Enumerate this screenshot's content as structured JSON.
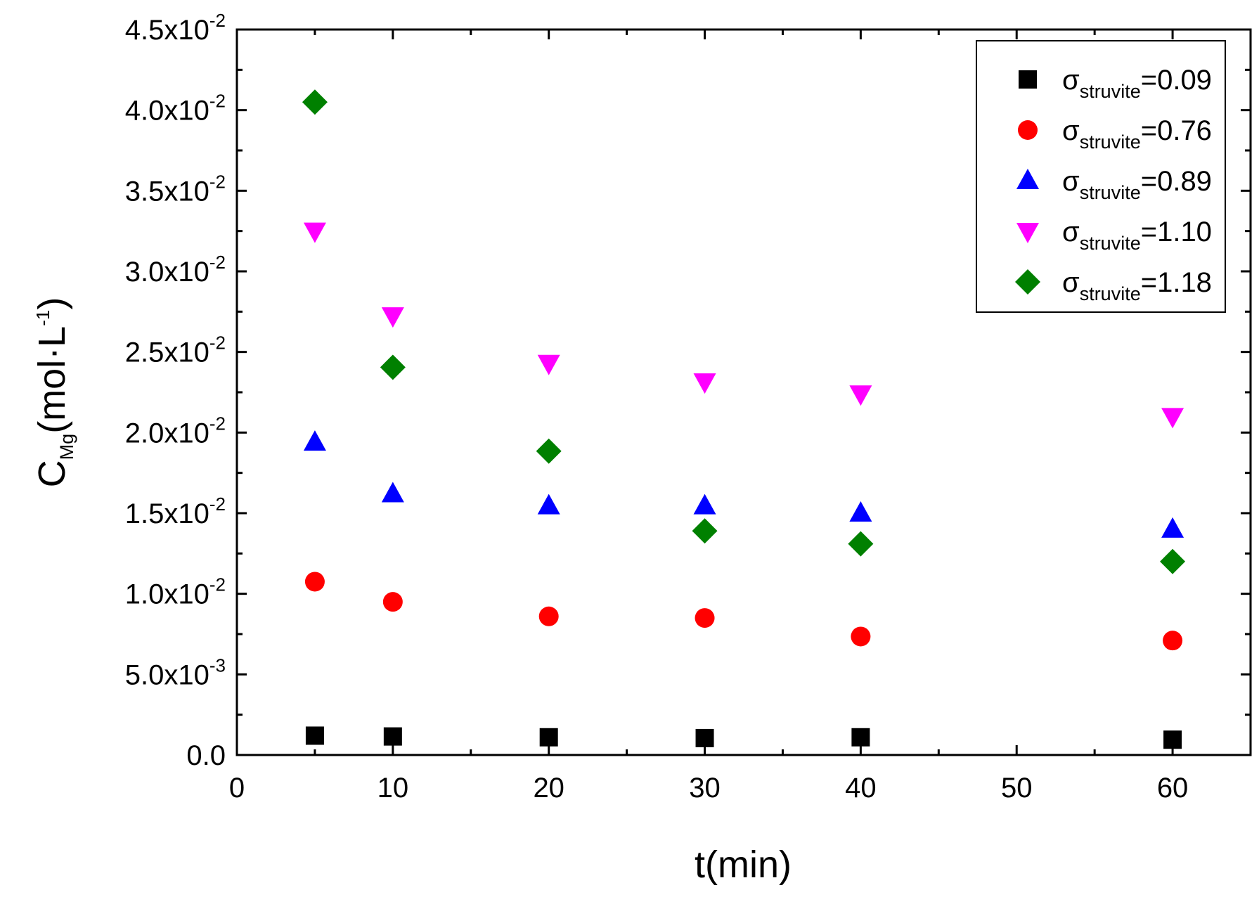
{
  "chart_data": {
    "type": "scatter",
    "title": "",
    "xlabel": "t(min)",
    "ylabel": {
      "main": "C",
      "sub": "Mg",
      "unit_prefix": "(mol·L",
      "unit_sup": "-1",
      "unit_suffix": ")"
    },
    "xlim": [
      0,
      65
    ],
    "ylim": [
      0,
      0.045
    ],
    "xticks": [
      0,
      10,
      20,
      30,
      40,
      50,
      60
    ],
    "yticks": [
      {
        "value": 0.0,
        "mant": "0.0",
        "exp": ""
      },
      {
        "value": 0.005,
        "mant": "5.0x10",
        "exp": "-3"
      },
      {
        "value": 0.01,
        "mant": "1.0x10",
        "exp": "-2"
      },
      {
        "value": 0.015,
        "mant": "1.5x10",
        "exp": "-2"
      },
      {
        "value": 0.02,
        "mant": "2.0x10",
        "exp": "-2"
      },
      {
        "value": 0.025,
        "mant": "2.5x10",
        "exp": "-2"
      },
      {
        "value": 0.03,
        "mant": "3.0x10",
        "exp": "-2"
      },
      {
        "value": 0.035,
        "mant": "3.5x10",
        "exp": "-2"
      },
      {
        "value": 0.04,
        "mant": "4.0x10",
        "exp": "-2"
      },
      {
        "value": 0.045,
        "mant": "4.5x10",
        "exp": "-2"
      }
    ],
    "grid": false,
    "legend_position": "top-right",
    "series": [
      {
        "name": "σstruvite=0.09",
        "label_main": "σ",
        "label_sub": "struvite",
        "label_val": "=0.09",
        "marker": "square",
        "color": "#000000",
        "x": [
          5,
          10,
          20,
          30,
          40,
          60
        ],
        "y": [
          0.0012,
          0.00115,
          0.0011,
          0.00105,
          0.0011,
          0.00095
        ]
      },
      {
        "name": "σstruvite=0.76",
        "label_main": "σ",
        "label_sub": "struvite",
        "label_val": "=0.76",
        "marker": "circle",
        "color": "#ff0000",
        "x": [
          5,
          10,
          20,
          30,
          40,
          60
        ],
        "y": [
          0.01075,
          0.0095,
          0.0086,
          0.0085,
          0.00735,
          0.0071
        ]
      },
      {
        "name": "σstruvite=0.89",
        "label_main": "σ",
        "label_sub": "struvite",
        "label_val": "=0.89",
        "marker": "triangle-up",
        "color": "#0000ff",
        "x": [
          5,
          10,
          20,
          30,
          40,
          60
        ],
        "y": [
          0.0194,
          0.0162,
          0.01545,
          0.01545,
          0.015,
          0.014
        ]
      },
      {
        "name": "σstruvite=1.10",
        "label_main": "σ",
        "label_sub": "struvite",
        "label_val": "=1.10",
        "marker": "triangle-down",
        "color": "#ff00ff",
        "x": [
          5,
          10,
          20,
          30,
          40,
          60
        ],
        "y": [
          0.0325,
          0.02725,
          0.0243,
          0.02315,
          0.0224,
          0.021
        ]
      },
      {
        "name": "σstruvite=1.18",
        "label_main": "σ",
        "label_sub": "struvite",
        "label_val": "=1.18",
        "marker": "diamond",
        "color": "#008000",
        "x": [
          5,
          10,
          20,
          30,
          40,
          60
        ],
        "y": [
          0.0405,
          0.02405,
          0.01885,
          0.0139,
          0.0131,
          0.012
        ]
      }
    ]
  }
}
